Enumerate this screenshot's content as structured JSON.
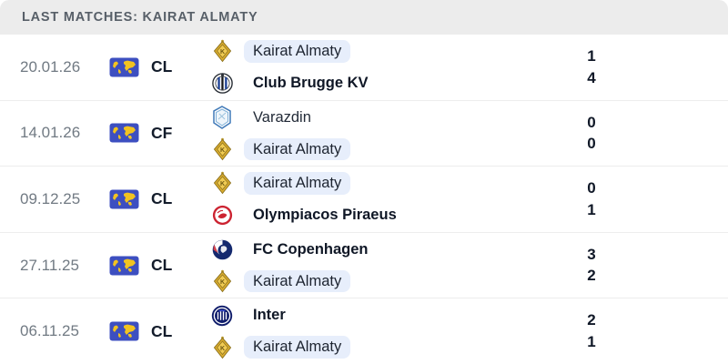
{
  "header": {
    "title": "LAST MATCHES: KAIRAT ALMATY"
  },
  "colors": {
    "header_bg": "#ececec",
    "highlight_pill_bg": "#e7eefb",
    "flag_bg": "#3d4fc0",
    "flag_map": "#f2c320",
    "kairat_gold": "#dcae2e",
    "olympiacos_red": "#cc2331",
    "copenhagen_navy": "#14296e",
    "inter_navy": "#101d6b",
    "brugge_blue": "#1b3f94"
  },
  "matches": [
    {
      "date": "20.01.26",
      "competition": "CL",
      "competition_icon": "world-flag-icon",
      "home": {
        "name": "Kairat Almaty",
        "score": "1",
        "logo": "kairat-almaty",
        "highlighted": true,
        "bold": false
      },
      "away": {
        "name": "Club Brugge KV",
        "score": "4",
        "logo": "club-brugge",
        "highlighted": false,
        "bold": true
      }
    },
    {
      "date": "14.01.26",
      "competition": "CF",
      "competition_icon": "world-flag-icon",
      "home": {
        "name": "Varazdin",
        "score": "0",
        "logo": "varazdin",
        "highlighted": false,
        "bold": false
      },
      "away": {
        "name": "Kairat Almaty",
        "score": "0",
        "logo": "kairat-almaty",
        "highlighted": true,
        "bold": false
      }
    },
    {
      "date": "09.12.25",
      "competition": "CL",
      "competition_icon": "world-flag-icon",
      "home": {
        "name": "Kairat Almaty",
        "score": "0",
        "logo": "kairat-almaty",
        "highlighted": true,
        "bold": false
      },
      "away": {
        "name": "Olympiacos Piraeus",
        "score": "1",
        "logo": "olympiacos",
        "highlighted": false,
        "bold": true
      }
    },
    {
      "date": "27.11.25",
      "competition": "CL",
      "competition_icon": "world-flag-icon",
      "home": {
        "name": "FC Copenhagen",
        "score": "3",
        "logo": "fc-copenhagen",
        "highlighted": false,
        "bold": true
      },
      "away": {
        "name": "Kairat Almaty",
        "score": "2",
        "logo": "kairat-almaty",
        "highlighted": true,
        "bold": false
      }
    },
    {
      "date": "06.11.25",
      "competition": "CL",
      "competition_icon": "world-flag-icon",
      "home": {
        "name": "Inter",
        "score": "2",
        "logo": "inter",
        "highlighted": false,
        "bold": true
      },
      "away": {
        "name": "Kairat Almaty",
        "score": "1",
        "logo": "kairat-almaty",
        "highlighted": true,
        "bold": false
      }
    }
  ]
}
